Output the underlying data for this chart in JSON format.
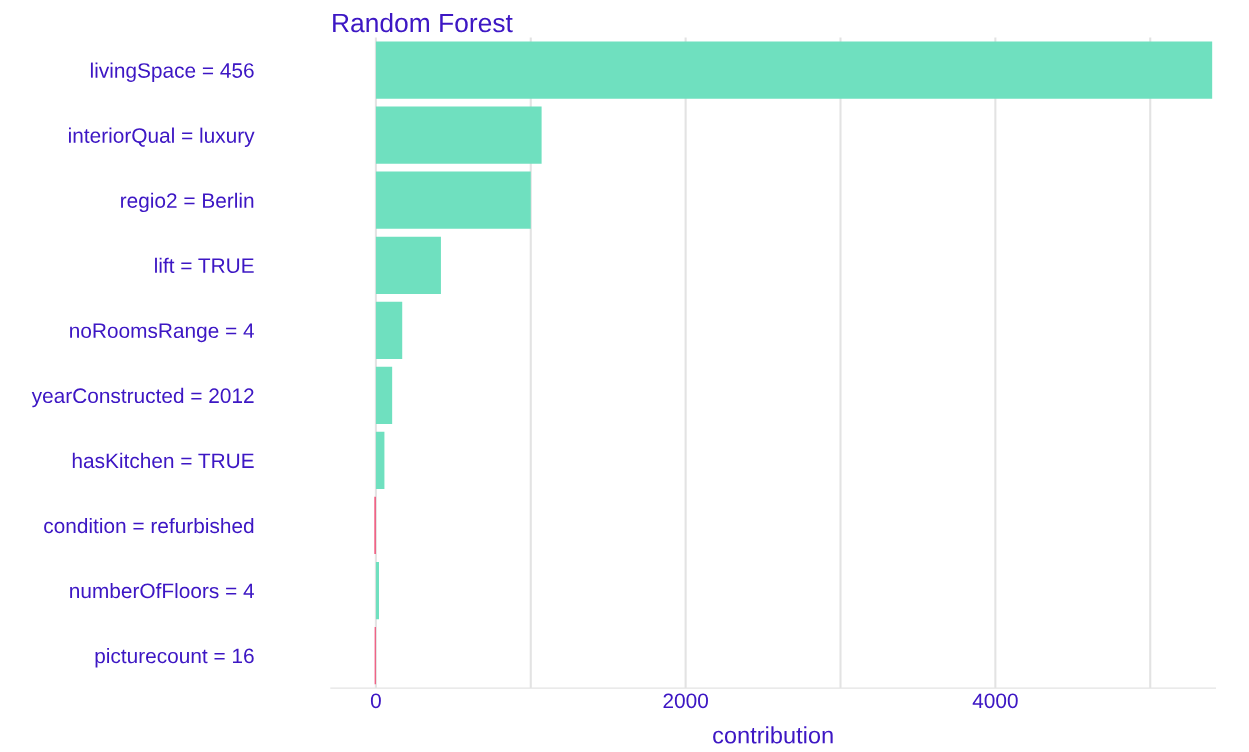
{
  "chart_data": {
    "type": "bar",
    "orientation": "horizontal",
    "title": "Random Forest",
    "xlabel": "contribution",
    "categories": [
      "livingSpace = 456",
      "interiorQual = luxury",
      "regio2 = Berlin",
      "lift = TRUE",
      "noRoomsRange = 4",
      "yearConstructed = 2012",
      "hasKitchen = TRUE",
      "condition = refurbished",
      "numberOfFloors = 4",
      "picturecount = 16"
    ],
    "values": [
      5400,
      1070,
      1000,
      420,
      170,
      105,
      55,
      -10,
      20,
      -8
    ],
    "colors": [
      "#6fe0bf",
      "#6fe0bf",
      "#6fe0bf",
      "#6fe0bf",
      "#6fe0bf",
      "#6fe0bf",
      "#6fe0bf",
      "#f0567c",
      "#6fe0bf",
      "#f0567c"
    ],
    "xlim": [
      -290,
      5420
    ],
    "xticks": [
      0,
      {
        "value": 1000,
        "label": null
      },
      2000,
      {
        "value": 3000,
        "label": null
      },
      4000,
      {
        "value": 5000,
        "label": null
      }
    ],
    "grid": "x"
  }
}
